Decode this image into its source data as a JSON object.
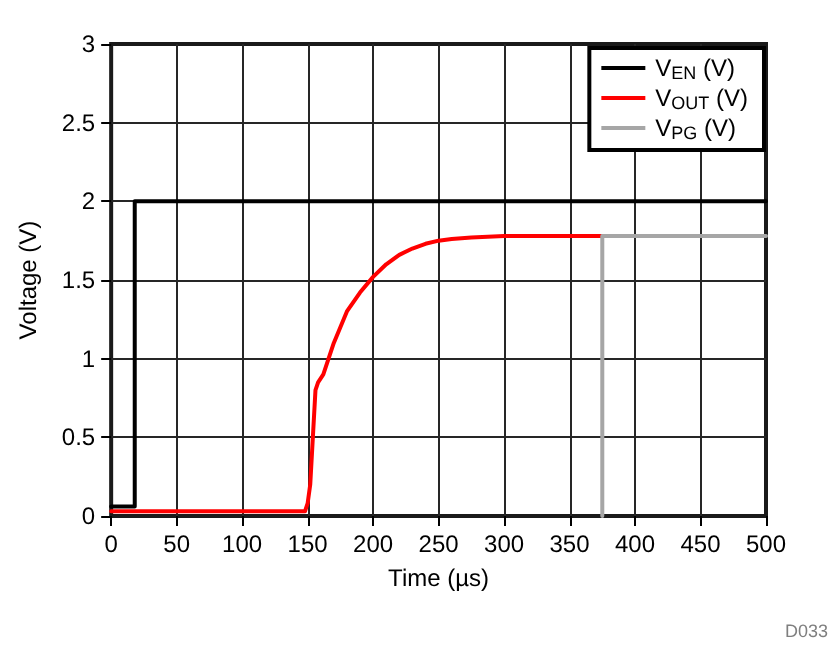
{
  "chart_data": {
    "type": "line",
    "xlabel": "Time (µs)",
    "ylabel": "Voltage (V)",
    "xlim": [
      0,
      500
    ],
    "xticks": [
      0,
      50,
      100,
      150,
      200,
      250,
      300,
      350,
      400,
      450,
      500
    ],
    "ylim": [
      0,
      3
    ],
    "yticks": [
      0,
      0.5,
      1,
      1.5,
      2,
      2.5,
      3
    ],
    "grid": true,
    "legend": "top right",
    "marker": "none",
    "line_style": "solid",
    "annotations": [
      "D033"
    ],
    "series": [
      {
        "name": "V$_{EN}$ (V)",
        "color": "#000000",
        "x": [
          0,
          10,
          18,
          18,
          60,
          160,
          260,
          360,
          460,
          500
        ],
        "values": [
          0.06,
          0.06,
          0.06,
          2,
          2,
          2,
          2,
          2,
          2,
          2
        ]
      },
      {
        "name": "V$_{OUT}$ (V)",
        "color": "#ff0000",
        "x": [
          0,
          148,
          150,
          152,
          154,
          156,
          158,
          162,
          166,
          170,
          175,
          180,
          190,
          200,
          210,
          220,
          230,
          240,
          250,
          260,
          275,
          300,
          374
        ],
        "values": [
          0.03,
          0.03,
          0.08,
          0.2,
          0.5,
          0.8,
          0.85,
          0.9,
          1.0,
          1.1,
          1.2,
          1.3,
          1.42,
          1.52,
          1.6,
          1.66,
          1.7,
          1.73,
          1.75,
          1.76,
          1.77,
          1.78,
          1.78
        ]
      },
      {
        "name": "V$_{PG}$ (V)",
        "color": "#a6a6a6",
        "x": [
          375,
          375,
          500
        ],
        "values": [
          0,
          1.78,
          1.78
        ]
      }
    ]
  }
}
